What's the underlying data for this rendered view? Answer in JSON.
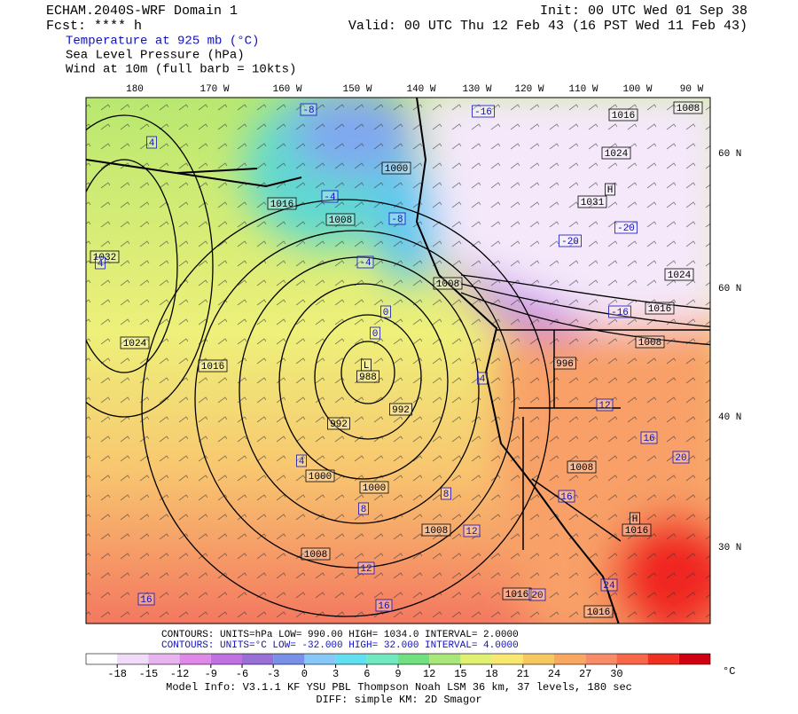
{
  "header": {
    "title": "ECHAM.2040S-WRF Domain 1",
    "fcst": "Fcst: **** h",
    "init": "Init: 00 UTC Wed 01 Sep 38",
    "valid": "Valid: 00 UTC Thu 12 Feb 43 (16 PST Wed 11 Feb 43)",
    "fields": [
      "Temperature at 925 mb (°C)",
      "Sea Level Pressure (hPa)",
      "Wind at 10m (full barb = 10kts)"
    ]
  },
  "map": {
    "lon_labels": [
      "180",
      "170 W",
      "160 W",
      "150 W",
      "140 W",
      "130 W",
      "120 W",
      "110 W",
      "100 W",
      "90 W"
    ],
    "lat_labels": [
      "60 N",
      "60 N",
      "40 N",
      "30 N"
    ],
    "pressure_labels": [
      "1016",
      "1008",
      "1000",
      "1032",
      "1024",
      "1016",
      "L",
      "988",
      "992",
      "992",
      "1000",
      "1000",
      "1008",
      "1008",
      "1016",
      "1016",
      "1008",
      "H",
      "1016",
      "996",
      "1008",
      "1016",
      "1024",
      "1016",
      "1008",
      "H",
      "1031",
      "1024",
      "1008"
    ],
    "temperature_labels": [
      "4",
      "-8",
      "-4",
      "-8",
      "-4",
      "0",
      "0",
      "4",
      "4",
      "8",
      "8",
      "12",
      "12",
      "16",
      "16",
      "20",
      "24",
      "16",
      "16",
      "20",
      "12",
      "-16",
      "-20",
      "-20",
      "-16",
      "4"
    ]
  },
  "footer": {
    "contours_slp": "CONTOURS:  UNITS=hPa  LOW=  990.00       HIGH=  1034.0       INTERVAL=   2.0000",
    "contours_t": "CONTOURS:  UNITS=°C  LOW= -32.000       HIGH=  32.000       INTERVAL=   4.0000",
    "colorbar": {
      "ticks": [
        -18,
        -15,
        -12,
        -9,
        -6,
        -3,
        0,
        3,
        6,
        9,
        12,
        15,
        18,
        21,
        24,
        27,
        30
      ],
      "unit": "°C",
      "colors": [
        "#ffffff",
        "#f0dcf8",
        "#e8b4f0",
        "#e088e8",
        "#c070e0",
        "#9870d8",
        "#7890e8",
        "#88c8f8",
        "#60e0f0",
        "#70e8c0",
        "#70e080",
        "#a8e878",
        "#e0f070",
        "#f8e870",
        "#f8c860",
        "#f8a860",
        "#f88c68",
        "#f86848",
        "#f03020",
        "#d00010"
      ]
    },
    "model_info": "Model Info: V3.1.1    KF      YSU PBL   Thompson     Noah LSM   36 km,    37 levels,   180 sec",
    "diff": "DIFF: simple KM: 2D Smagor"
  }
}
